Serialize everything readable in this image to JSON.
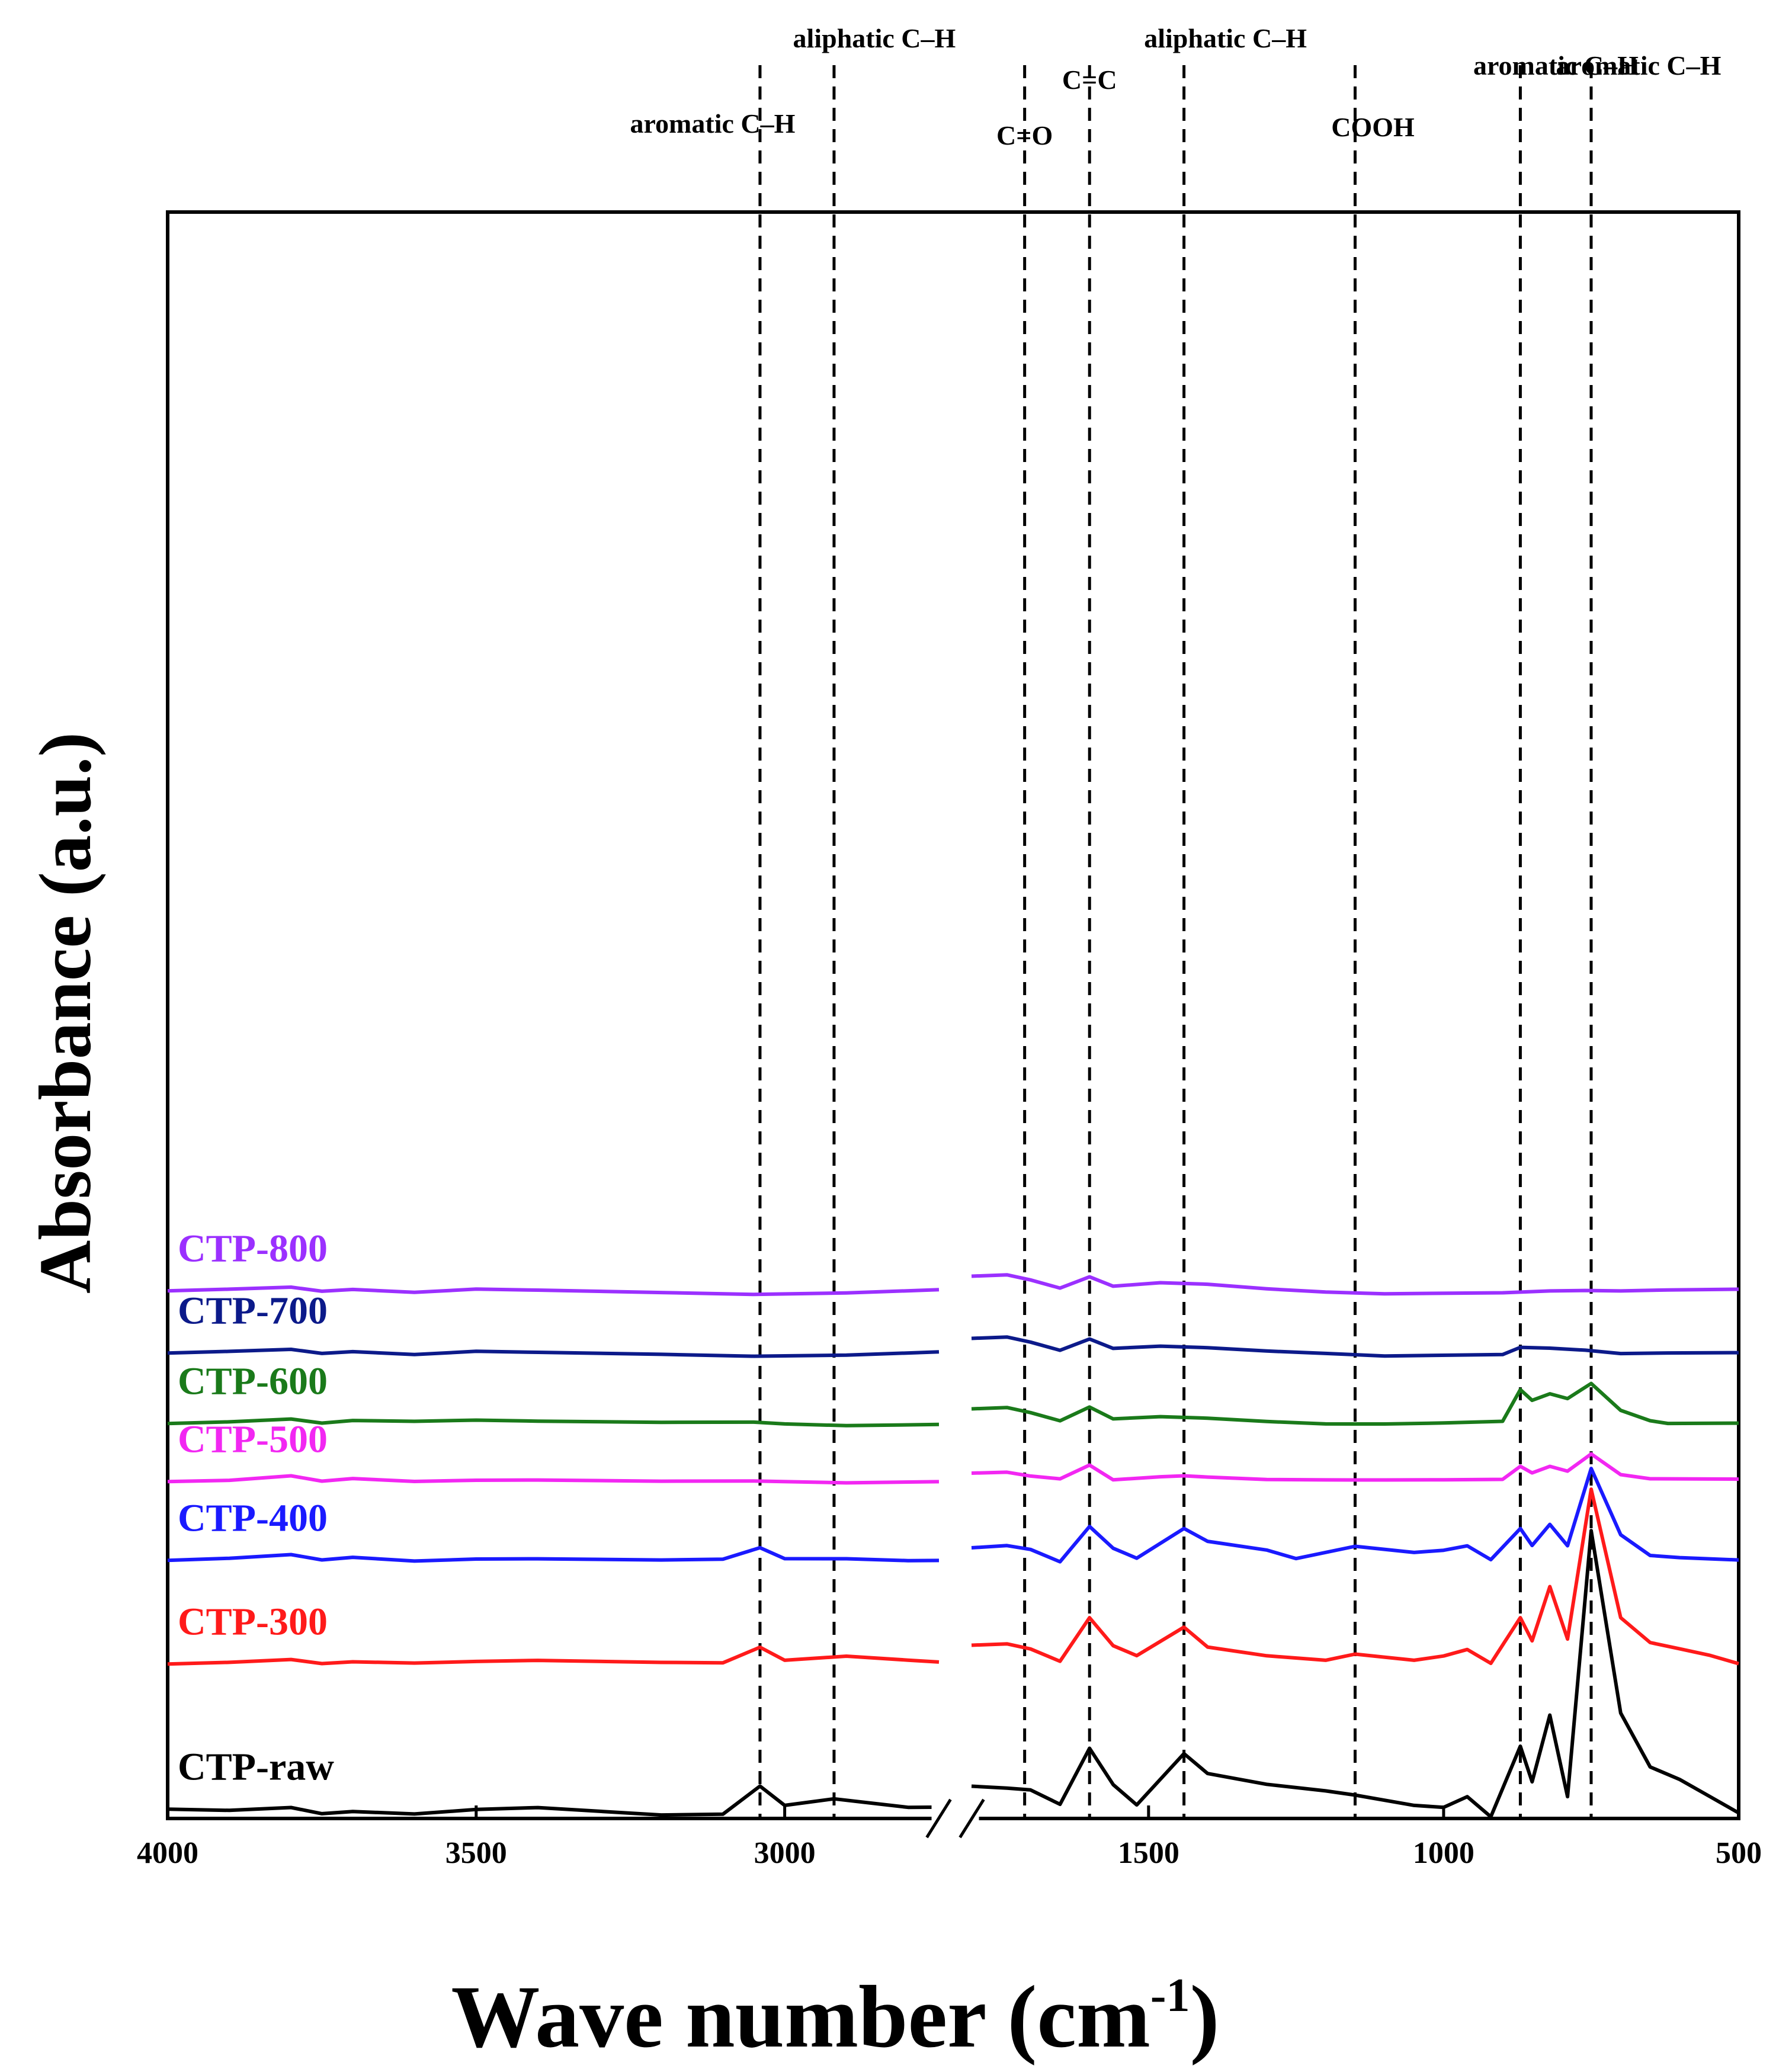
{
  "chart_data": {
    "type": "line",
    "title": "",
    "xlabel": "Wave number",
    "xlabel_unit": "(cm",
    "xlabel_unit_exp": "-1",
    "xlabel_unit_close": ")",
    "ylabel": "Absorbance (a.u.)",
    "x_reversed": true,
    "x_break": [
      1800,
      2750
    ],
    "segments": [
      {
        "xlim": [
          4000,
          2750
        ]
      },
      {
        "xlim": [
          1800,
          500
        ]
      }
    ],
    "xticks": [
      4000,
      3500,
      3000,
      1500,
      1000,
      500
    ],
    "xtick_labels": [
      "4000",
      "3500",
      "3000",
      "1500",
      "1000",
      "500"
    ],
    "y_ticks_shown": false,
    "annotations": [
      {
        "label": "aromatic C–H",
        "x": 3040
      },
      {
        "label": "aliphatic C–H",
        "x": 2920
      },
      {
        "label": "C=O",
        "x": 1710
      },
      {
        "label": "C=C",
        "x": 1600
      },
      {
        "label": "aliphatic C–H",
        "x": 1440
      },
      {
        "label": "COOH",
        "x": 1150
      },
      {
        "label": "aromatic C–H",
        "x": 870
      },
      {
        "label": "aromatic C–H",
        "x": 750
      }
    ],
    "series": [
      {
        "name": "CTP-800",
        "color": "#9b30ff",
        "offset": 9.3,
        "points": [
          [
            4000,
            0.0
          ],
          [
            3900,
            0.05
          ],
          [
            3800,
            0.1
          ],
          [
            3750,
            0.0
          ],
          [
            3700,
            0.04
          ],
          [
            3600,
            -0.04
          ],
          [
            3500,
            0.03
          ],
          [
            3400,
            0.0
          ],
          [
            3200,
            -0.05
          ],
          [
            3050,
            -0.08
          ],
          [
            2900,
            -0.04
          ],
          [
            2750,
            0.03
          ],
          [
            1800,
            0.35
          ],
          [
            1740,
            0.38
          ],
          [
            1700,
            0.25
          ],
          [
            1650,
            0.05
          ],
          [
            1600,
            0.32
          ],
          [
            1560,
            0.12
          ],
          [
            1480,
            0.18
          ],
          [
            1400,
            0.15
          ],
          [
            1300,
            0.05
          ],
          [
            1200,
            -0.02
          ],
          [
            1100,
            -0.06
          ],
          [
            900,
            -0.05
          ],
          [
            820,
            -0.02
          ],
          [
            760,
            0.02
          ],
          [
            700,
            -0.02
          ],
          [
            620,
            0.02
          ],
          [
            500,
            0.03
          ]
        ]
      },
      {
        "name": "CTP-700",
        "color": "#0c1a8a",
        "offset": 7.8,
        "points": [
          [
            4000,
            0.0
          ],
          [
            3900,
            0.05
          ],
          [
            3800,
            0.1
          ],
          [
            3750,
            0.0
          ],
          [
            3700,
            0.04
          ],
          [
            3600,
            -0.04
          ],
          [
            3500,
            0.03
          ],
          [
            3400,
            0.0
          ],
          [
            3200,
            -0.04
          ],
          [
            3050,
            -0.07
          ],
          [
            2900,
            -0.04
          ],
          [
            2750,
            0.03
          ],
          [
            1800,
            0.35
          ],
          [
            1740,
            0.38
          ],
          [
            1700,
            0.25
          ],
          [
            1650,
            0.05
          ],
          [
            1600,
            0.32
          ],
          [
            1560,
            0.12
          ],
          [
            1480,
            0.15
          ],
          [
            1400,
            0.12
          ],
          [
            1300,
            0.05
          ],
          [
            1200,
            0.0
          ],
          [
            1100,
            -0.06
          ],
          [
            900,
            -0.04
          ],
          [
            870,
            0.12
          ],
          [
            820,
            0.1
          ],
          [
            760,
            0.08
          ],
          [
            700,
            -0.03
          ],
          [
            620,
            0.0
          ],
          [
            500,
            0.0
          ]
        ]
      },
      {
        "name": "CTP-600",
        "color": "#1a7a1a",
        "offset": 6.1,
        "points": [
          [
            4000,
            0.0
          ],
          [
            3900,
            0.05
          ],
          [
            3800,
            0.12
          ],
          [
            3750,
            0.02
          ],
          [
            3700,
            0.08
          ],
          [
            3600,
            0.05
          ],
          [
            3500,
            0.07
          ],
          [
            3400,
            0.04
          ],
          [
            3200,
            0.02
          ],
          [
            3050,
            0.04
          ],
          [
            3000,
            0.0
          ],
          [
            2900,
            -0.04
          ],
          [
            2750,
            -0.02
          ],
          [
            1800,
            0.35
          ],
          [
            1740,
            0.38
          ],
          [
            1700,
            0.25
          ],
          [
            1650,
            0.05
          ],
          [
            1600,
            0.38
          ],
          [
            1560,
            0.12
          ],
          [
            1480,
            0.15
          ],
          [
            1400,
            0.12
          ],
          [
            1300,
            0.05
          ],
          [
            1200,
            0.0
          ],
          [
            1100,
            0.0
          ],
          [
            1000,
            0.02
          ],
          [
            900,
            0.05
          ],
          [
            870,
            0.8
          ],
          [
            850,
            0.55
          ],
          [
            820,
            0.7
          ],
          [
            790,
            0.6
          ],
          [
            750,
            0.95
          ],
          [
            700,
            0.3
          ],
          [
            650,
            0.05
          ],
          [
            620,
            0.0
          ],
          [
            500,
            0.0
          ]
        ]
      },
      {
        "name": "CTP-500",
        "color": "#f227f2",
        "offset": 4.7,
        "points": [
          [
            4000,
            0.0
          ],
          [
            3900,
            0.04
          ],
          [
            3800,
            0.15
          ],
          [
            3750,
            0.02
          ],
          [
            3700,
            0.08
          ],
          [
            3600,
            0.0
          ],
          [
            3500,
            0.02
          ],
          [
            3400,
            0.02
          ],
          [
            3200,
            0.0
          ],
          [
            3050,
            0.02
          ],
          [
            2900,
            -0.02
          ],
          [
            2750,
            0.0
          ],
          [
            1800,
            0.2
          ],
          [
            1740,
            0.22
          ],
          [
            1700,
            0.12
          ],
          [
            1650,
            0.05
          ],
          [
            1600,
            0.38
          ],
          [
            1560,
            0.05
          ],
          [
            1480,
            0.1
          ],
          [
            1440,
            0.15
          ],
          [
            1400,
            0.1
          ],
          [
            1300,
            0.05
          ],
          [
            1200,
            0.05
          ],
          [
            1100,
            0.05
          ],
          [
            1000,
            0.05
          ],
          [
            900,
            0.05
          ],
          [
            870,
            0.35
          ],
          [
            850,
            0.2
          ],
          [
            820,
            0.35
          ],
          [
            790,
            0.25
          ],
          [
            750,
            0.65
          ],
          [
            700,
            0.15
          ],
          [
            650,
            0.05
          ],
          [
            500,
            0.05
          ]
        ]
      },
      {
        "name": "CTP-400",
        "color": "#1a1aff",
        "offset": 2.8,
        "points": [
          [
            4000,
            0.0
          ],
          [
            3900,
            0.06
          ],
          [
            3800,
            0.15
          ],
          [
            3750,
            0.02
          ],
          [
            3700,
            0.08
          ],
          [
            3600,
            -0.02
          ],
          [
            3500,
            0.02
          ],
          [
            3400,
            0.02
          ],
          [
            3200,
            0.0
          ],
          [
            3100,
            0.03
          ],
          [
            3040,
            0.3
          ],
          [
            3000,
            0.05
          ],
          [
            2900,
            0.05
          ],
          [
            2800,
            0.0
          ],
          [
            2750,
            0.0
          ],
          [
            1800,
            0.3
          ],
          [
            1740,
            0.35
          ],
          [
            1700,
            0.25
          ],
          [
            1650,
            -0.05
          ],
          [
            1600,
            0.8
          ],
          [
            1560,
            0.3
          ],
          [
            1520,
            0.05
          ],
          [
            1440,
            0.78
          ],
          [
            1400,
            0.45
          ],
          [
            1300,
            0.25
          ],
          [
            1250,
            0.05
          ],
          [
            1150,
            0.35
          ],
          [
            1050,
            0.2
          ],
          [
            1000,
            0.25
          ],
          [
            960,
            0.35
          ],
          [
            920,
            0.0
          ],
          [
            870,
            0.75
          ],
          [
            850,
            0.35
          ],
          [
            820,
            0.85
          ],
          [
            790,
            0.35
          ],
          [
            750,
            2.2
          ],
          [
            700,
            0.6
          ],
          [
            650,
            0.1
          ],
          [
            600,
            0.05
          ],
          [
            500,
            0.0
          ]
        ]
      },
      {
        "name": "CTP-300",
        "color": "#ff1a1a",
        "offset": 0.3,
        "points": [
          [
            4000,
            0.0
          ],
          [
            3900,
            0.05
          ],
          [
            3800,
            0.12
          ],
          [
            3750,
            0.02
          ],
          [
            3700,
            0.06
          ],
          [
            3600,
            0.02
          ],
          [
            3500,
            0.05
          ],
          [
            3400,
            0.07
          ],
          [
            3200,
            0.03
          ],
          [
            3100,
            0.03
          ],
          [
            3040,
            0.4
          ],
          [
            3000,
            0.1
          ],
          [
            2900,
            0.2
          ],
          [
            2800,
            0.1
          ],
          [
            2750,
            0.05
          ],
          [
            1800,
            0.45
          ],
          [
            1740,
            0.48
          ],
          [
            1700,
            0.35
          ],
          [
            1650,
            0.05
          ],
          [
            1600,
            1.1
          ],
          [
            1560,
            0.45
          ],
          [
            1520,
            0.2
          ],
          [
            1440,
            0.9
          ],
          [
            1400,
            0.4
          ],
          [
            1300,
            0.2
          ],
          [
            1200,
            0.1
          ],
          [
            1150,
            0.25
          ],
          [
            1050,
            0.1
          ],
          [
            1000,
            0.2
          ],
          [
            960,
            0.35
          ],
          [
            920,
            0.0
          ],
          [
            870,
            1.1
          ],
          [
            850,
            0.55
          ],
          [
            820,
            1.85
          ],
          [
            790,
            0.6
          ],
          [
            750,
            4.2
          ],
          [
            700,
            1.1
          ],
          [
            650,
            0.5
          ],
          [
            600,
            0.35
          ],
          [
            550,
            0.2
          ],
          [
            500,
            0.0
          ]
        ]
      },
      {
        "name": "CTP-raw",
        "color": "#000000",
        "offset": -3.2,
        "points": [
          [
            4000,
            0.0
          ],
          [
            3900,
            -0.02
          ],
          [
            3800,
            0.05
          ],
          [
            3750,
            -0.1
          ],
          [
            3700,
            -0.05
          ],
          [
            3600,
            -0.12
          ],
          [
            3500,
            -0.02
          ],
          [
            3400,
            0.02
          ],
          [
            3200,
            -0.15
          ],
          [
            3100,
            -0.12
          ],
          [
            3040,
            0.55
          ],
          [
            3000,
            0.1
          ],
          [
            2920,
            0.25
          ],
          [
            2800,
            0.05
          ],
          [
            2750,
            0.05
          ],
          [
            1800,
            0.55
          ],
          [
            1740,
            0.5
          ],
          [
            1700,
            0.45
          ],
          [
            1650,
            0.1
          ],
          [
            1600,
            1.45
          ],
          [
            1560,
            0.6
          ],
          [
            1520,
            0.1
          ],
          [
            1440,
            1.35
          ],
          [
            1400,
            0.85
          ],
          [
            1300,
            0.6
          ],
          [
            1200,
            0.45
          ],
          [
            1150,
            0.35
          ],
          [
            1050,
            0.1
          ],
          [
            1000,
            0.05
          ],
          [
            960,
            0.3
          ],
          [
            920,
            -0.2
          ],
          [
            870,
            1.5
          ],
          [
            850,
            0.65
          ],
          [
            820,
            2.25
          ],
          [
            790,
            0.3
          ],
          [
            750,
            6.7
          ],
          [
            700,
            2.3
          ],
          [
            650,
            1.0
          ],
          [
            600,
            0.7
          ],
          [
            550,
            0.3
          ],
          [
            500,
            -0.1
          ]
        ]
      }
    ]
  }
}
